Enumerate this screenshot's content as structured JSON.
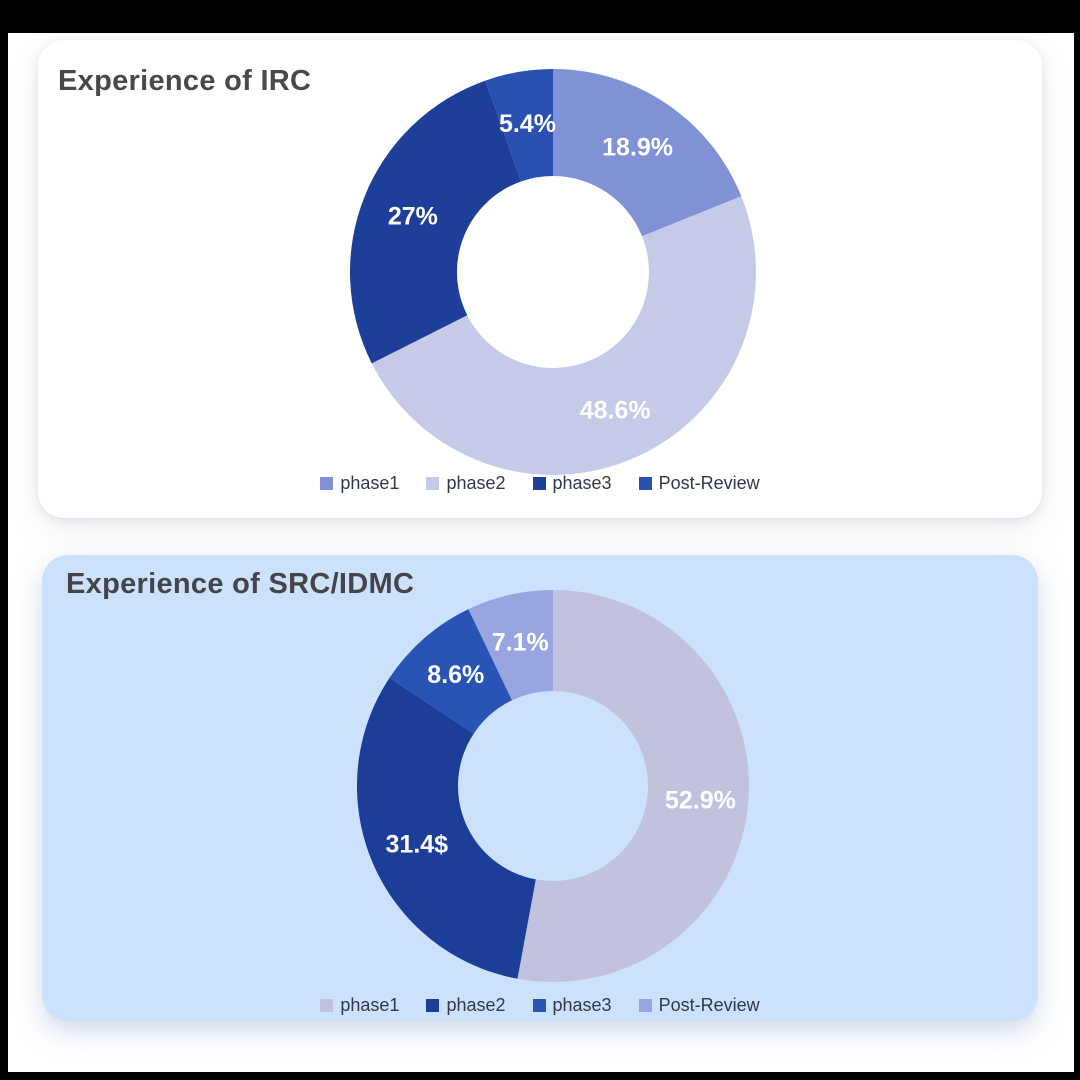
{
  "frame": {
    "background": "#000000",
    "canvas_background": "#ffffff"
  },
  "cards": [
    {
      "background": "#ffffff",
      "title_color": "#49494d"
    },
    {
      "background": "#cbe1fc",
      "title_color": "#454449"
    }
  ],
  "chart_data": [
    {
      "type": "pie",
      "donut": true,
      "title": "Experience of IRC",
      "categories": [
        "phase1",
        "phase2",
        "phase3",
        "Post-Review"
      ],
      "values": [
        18.9,
        48.6,
        27,
        5.4
      ],
      "value_labels": [
        "18.9%",
        "48.6%",
        "27%",
        "5.4%"
      ],
      "colors": [
        "#8191d6",
        "#c5cae9",
        "#1d3e99",
        "#2a50b2"
      ],
      "label_text_color": "#ffffff",
      "legend_position": "bottom",
      "legend_text_color": "#32374a",
      "start_angle_deg": 0,
      "clockwise": true
    },
    {
      "type": "pie",
      "donut": true,
      "title": "Experience of SRC/IDMC",
      "categories": [
        "phase1",
        "phase2",
        "phase3",
        "Post-Review"
      ],
      "values": [
        52.9,
        31.4,
        8.6,
        7.1
      ],
      "value_labels": [
        "52.9%",
        "31.4$",
        "8.6%",
        "7.1%"
      ],
      "colors": [
        "#c1c3de",
        "#1c3e98",
        "#2954b6",
        "#98a5e1"
      ],
      "label_text_color": "#ffffff",
      "legend_position": "bottom",
      "legend_text_color": "#32374a",
      "start_angle_deg": 0,
      "clockwise": true
    }
  ]
}
